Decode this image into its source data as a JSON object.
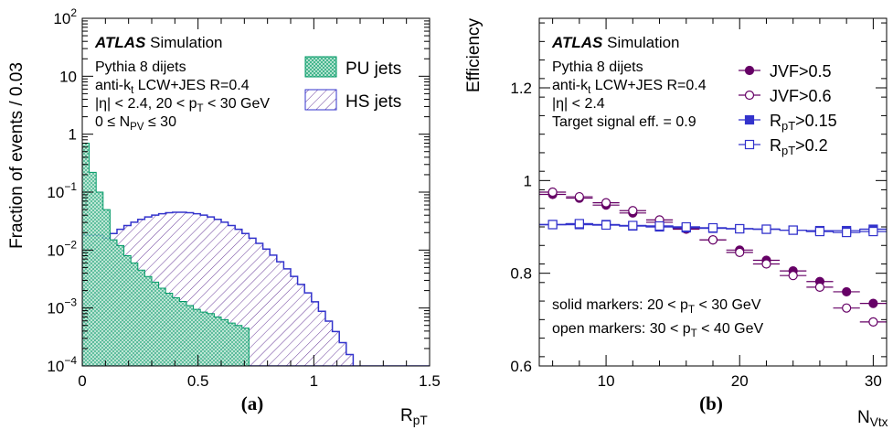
{
  "colors": {
    "pu": "#009966",
    "pu_fill": "#7fd6b0",
    "hs": "#3333cc",
    "hs_fill": "#6a3d9a",
    "jvf": "#660066"
  },
  "chart_data": [
    {
      "type": "area",
      "panel_label": "(a)",
      "ylabel": "Fraction of events / 0.03",
      "xlabel": "R_pT",
      "xlim": [
        0,
        1.5
      ],
      "ylim": [
        0.0001,
        100
      ],
      "log_y": true,
      "x_ticks": [
        0,
        0.5,
        1,
        1.5
      ],
      "y_ticks": [
        {
          "v": 100,
          "m": "10",
          "e": "2"
        },
        {
          "v": 10,
          "m": "10",
          "e": ""
        },
        {
          "v": 1,
          "m": "1",
          "e": ""
        },
        {
          "v": 0.1,
          "m": "10",
          "e": "−1"
        },
        {
          "v": 0.01,
          "m": "10",
          "e": "−2"
        },
        {
          "v": 0.001,
          "m": "10",
          "e": "−3"
        },
        {
          "v": 0.0001,
          "m": "10",
          "e": "−4"
        }
      ],
      "atlas": "ATLAS",
      "atlas_sub": "Simulation",
      "info_lines": [
        "Pythia 8 dijets",
        "anti-kt LCW+JES R=0.4",
        "|η| < 2.4, 20 < pT < 30 GeV",
        "0 ≤ NPV ≤ 30"
      ],
      "bin_width": 0.03,
      "series": [
        {
          "name": "PU jets",
          "hatch": "cross",
          "values": [
            0.7,
            0.22,
            0.1,
            0.05,
            0.015,
            0.012,
            0.008,
            0.006,
            0.0045,
            0.0035,
            0.0028,
            0.0022,
            0.0018,
            0.0015,
            0.0013,
            0.0011,
            0.00095,
            0.00085,
            0.0008,
            0.0007,
            0.00063,
            0.00055,
            0.0005,
            0.00045
          ]
        },
        {
          "name": "HS jets",
          "hatch": "diag",
          "peak": 0.045,
          "peak_x": 0.42,
          "width": 0.2
        }
      ]
    },
    {
      "type": "scatter",
      "panel_label": "(b)",
      "ylabel": "Efficiency",
      "xlabel": "N_Vtx",
      "xlim": [
        5,
        31
      ],
      "ylim": [
        0.6,
        1.35
      ],
      "x_ticks": [
        10,
        20,
        30
      ],
      "y_ticks": [
        0.6,
        0.8,
        1,
        1.2
      ],
      "atlas": "ATLAS",
      "atlas_sub": "Simulation",
      "info_lines": [
        "Pythia 8 dijets",
        "anti-kt LCW+JES R=0.4",
        "|η| < 2.4",
        "Target signal eff. = 0.9"
      ],
      "notes": [
        "solid markers: 20 < pT < 30 GeV",
        "open markers: 30 < pT < 40 GeV"
      ],
      "x": [
        6,
        8,
        10,
        12,
        14,
        16,
        18,
        20,
        22,
        24,
        26,
        28,
        30
      ],
      "series": [
        {
          "name": "JVF>0.5",
          "marker": "circle",
          "filled": true,
          "values": [
            0.97,
            0.962,
            0.947,
            0.93,
            0.91,
            0.895,
            0.872,
            0.85,
            0.828,
            0.805,
            0.782,
            0.76,
            0.735
          ]
        },
        {
          "name": "JVF>0.6",
          "marker": "circle",
          "filled": false,
          "values": [
            0.975,
            0.965,
            0.952,
            0.935,
            0.915,
            0.897,
            0.872,
            0.845,
            0.82,
            0.795,
            0.77,
            0.725,
            0.695
          ]
        },
        {
          "name": "RpT>0.15",
          "marker": "square",
          "filled": true,
          "values": [
            0.905,
            0.905,
            0.905,
            0.902,
            0.9,
            0.898,
            0.897,
            0.896,
            0.895,
            0.893,
            0.892,
            0.892,
            0.895
          ]
        },
        {
          "name": "RpT>0.2",
          "marker": "square",
          "filled": false,
          "values": [
            0.905,
            0.907,
            0.904,
            0.903,
            0.902,
            0.9,
            0.898,
            0.896,
            0.895,
            0.893,
            0.89,
            0.888,
            0.89
          ]
        }
      ]
    }
  ]
}
